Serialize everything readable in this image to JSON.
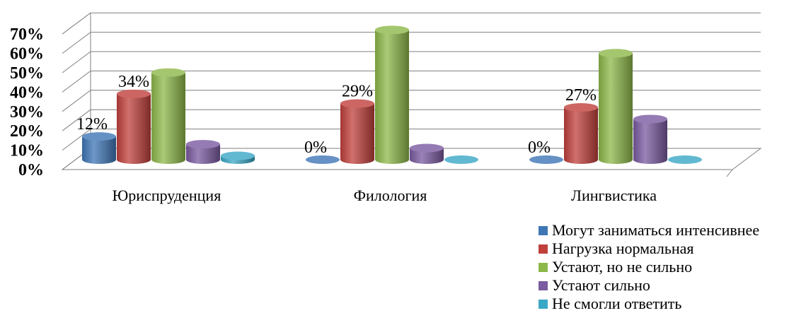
{
  "chart_data": {
    "type": "bar",
    "categories": [
      "Юриспруденция",
      "Филология",
      "Лингвистика"
    ],
    "ylim": [
      0,
      70
    ],
    "yticks": [
      "0%",
      "10%",
      "20%",
      "30%",
      "40%",
      "50%",
      "60%",
      "70%"
    ],
    "series": [
      {
        "name": "Могут заниматься интенсивнее",
        "color": "#3f76b5",
        "values": [
          12,
          0,
          0
        ]
      },
      {
        "name": "Нагрузка нормальная",
        "color": "#c0403c",
        "values": [
          34,
          29,
          27
        ]
      },
      {
        "name": "Устают, но не сильно",
        "color": "#8db84a",
        "values": [
          45,
          67,
          55
        ]
      },
      {
        "name": "Устают сильно",
        "color": "#7a5aa0",
        "values": [
          8,
          6,
          21
        ]
      },
      {
        "name": "Не смогли ответить",
        "color": "#39a7c6",
        "values": [
          2,
          0,
          0
        ]
      }
    ],
    "data_labels": [
      {
        "series": 0,
        "category": 0,
        "text": "12%"
      },
      {
        "series": 1,
        "category": 0,
        "text": "34%"
      },
      {
        "series": 0,
        "category": 1,
        "text": "0%"
      },
      {
        "series": 1,
        "category": 1,
        "text": "29%"
      },
      {
        "series": 0,
        "category": 2,
        "text": "0%"
      },
      {
        "series": 1,
        "category": 2,
        "text": "27%"
      }
    ],
    "legend_position": "bottom-right",
    "grid": true,
    "style": "3d-cylinder"
  }
}
